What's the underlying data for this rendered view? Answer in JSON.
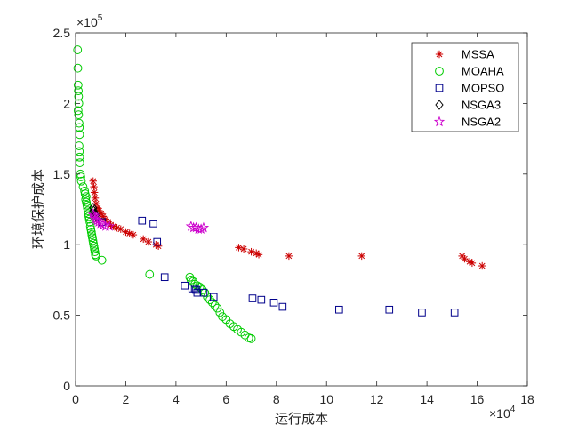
{
  "chart_data": {
    "type": "scatter",
    "xlabel": "运行成本",
    "ylabel": "环境保护成本",
    "x_exponent_label": "×10^4",
    "y_exponent_label": "×10^5",
    "x_scale": 10000,
    "y_scale": 100000,
    "xlim": [
      0,
      180000
    ],
    "ylim": [
      0,
      250000
    ],
    "xticks": [
      0,
      20000,
      40000,
      60000,
      80000,
      100000,
      120000,
      140000,
      160000,
      180000
    ],
    "xtick_labels": [
      "0",
      "2",
      "4",
      "6",
      "8",
      "10",
      "12",
      "14",
      "16",
      "18"
    ],
    "yticks": [
      0,
      50000,
      100000,
      150000,
      200000,
      250000
    ],
    "ytick_labels": [
      "0",
      "0.5",
      "1",
      "1.5",
      "2",
      "2.5"
    ],
    "grid": false,
    "legend_position": "top-right",
    "series": [
      {
        "name": "MSSA",
        "marker": "asterisk",
        "color": "#cc0000",
        "points": [
          [
            7000,
            145000
          ],
          [
            7300,
            141000
          ],
          [
            7500,
            137000
          ],
          [
            7800,
            133000
          ],
          [
            8200,
            129000
          ],
          [
            8800,
            126000
          ],
          [
            9400,
            124000
          ],
          [
            10200,
            122000
          ],
          [
            11000,
            120000
          ],
          [
            12000,
            118000
          ],
          [
            13000,
            116000
          ],
          [
            14000,
            114000
          ],
          [
            15000,
            113000
          ],
          [
            16500,
            112000
          ],
          [
            18000,
            111000
          ],
          [
            20000,
            109000
          ],
          [
            21500,
            108000
          ],
          [
            23000,
            107000
          ],
          [
            27000,
            104000
          ],
          [
            29000,
            102000
          ],
          [
            32000,
            100000
          ],
          [
            33000,
            99000
          ],
          [
            65000,
            98000
          ],
          [
            67000,
            97000
          ],
          [
            70000,
            95000
          ],
          [
            72000,
            94000
          ],
          [
            73000,
            93000
          ],
          [
            85000,
            92000
          ],
          [
            114000,
            92000
          ],
          [
            154000,
            92000
          ],
          [
            155000,
            90000
          ],
          [
            157000,
            88000
          ],
          [
            158000,
            87000
          ],
          [
            162000,
            85000
          ]
        ]
      },
      {
        "name": "MOAHA",
        "marker": "circle",
        "color": "#00cc00",
        "points": [
          [
            800,
            238000
          ],
          [
            900,
            225000
          ],
          [
            1000,
            213000
          ],
          [
            1100,
            209000
          ],
          [
            1200,
            205000
          ],
          [
            1300,
            200000
          ],
          [
            1000,
            195000
          ],
          [
            1200,
            192000
          ],
          [
            1400,
            186000
          ],
          [
            1500,
            183000
          ],
          [
            1600,
            178000
          ],
          [
            1400,
            170000
          ],
          [
            1500,
            166000
          ],
          [
            1600,
            162000
          ],
          [
            1700,
            158000
          ],
          [
            1900,
            150000
          ],
          [
            2100,
            148000
          ],
          [
            2300,
            145000
          ],
          [
            3000,
            141000
          ],
          [
            3600,
            138000
          ],
          [
            3800,
            136000
          ],
          [
            4200,
            134000
          ],
          [
            4000,
            132000
          ],
          [
            4300,
            130000
          ],
          [
            4500,
            128000
          ],
          [
            4700,
            126000
          ],
          [
            4900,
            124000
          ],
          [
            5100,
            122000
          ],
          [
            5300,
            120000
          ],
          [
            5500,
            118000
          ],
          [
            5700,
            116000
          ],
          [
            5900,
            113000
          ],
          [
            6100,
            111000
          ],
          [
            6300,
            109000
          ],
          [
            6500,
            107000
          ],
          [
            6700,
            105000
          ],
          [
            6900,
            103000
          ],
          [
            7100,
            101000
          ],
          [
            7300,
            99000
          ],
          [
            7500,
            97000
          ],
          [
            7700,
            95000
          ],
          [
            7900,
            93000
          ],
          [
            8200,
            92000
          ],
          [
            10500,
            89000
          ],
          [
            29500,
            79000
          ],
          [
            45500,
            77000
          ],
          [
            46000,
            75000
          ],
          [
            46800,
            74000
          ],
          [
            47500,
            72000
          ],
          [
            48500,
            71000
          ],
          [
            49500,
            70000
          ],
          [
            50500,
            68000
          ],
          [
            51500,
            66000
          ],
          [
            52500,
            63000
          ],
          [
            53500,
            61000
          ],
          [
            54500,
            59000
          ],
          [
            55500,
            57000
          ],
          [
            56500,
            55000
          ],
          [
            57500,
            52000
          ],
          [
            58500,
            49000
          ],
          [
            60000,
            47000
          ],
          [
            61500,
            44000
          ],
          [
            63000,
            42000
          ],
          [
            64500,
            40000
          ],
          [
            66000,
            38000
          ],
          [
            67500,
            36000
          ],
          [
            69000,
            34000
          ],
          [
            70000,
            33500
          ]
        ]
      },
      {
        "name": "MOPSO",
        "marker": "square",
        "color": "#00008b",
        "points": [
          [
            10500,
            116000
          ],
          [
            26500,
            117000
          ],
          [
            31000,
            115000
          ],
          [
            32500,
            102000
          ],
          [
            35500,
            77000
          ],
          [
            43500,
            71000
          ],
          [
            46500,
            69000
          ],
          [
            47500,
            69000
          ],
          [
            48000,
            68000
          ],
          [
            48500,
            66000
          ],
          [
            51000,
            66000
          ],
          [
            55000,
            63000
          ],
          [
            70500,
            62000
          ],
          [
            74000,
            61000
          ],
          [
            79000,
            59000
          ],
          [
            82500,
            56000
          ],
          [
            105000,
            54000
          ],
          [
            125000,
            54000
          ],
          [
            138000,
            52000
          ],
          [
            151000,
            52000
          ]
        ]
      },
      {
        "name": "NSGA3",
        "marker": "diamond",
        "color": "#000000",
        "points": [
          [
            7000,
            126000
          ],
          [
            7200,
            124000
          ],
          [
            7600,
            122000
          ],
          [
            8000,
            121000
          ],
          [
            8400,
            120000
          ]
        ]
      },
      {
        "name": "NSGA2",
        "marker": "pentagram",
        "color": "#cc00cc",
        "points": [
          [
            6800,
            122000
          ],
          [
            7200,
            121000
          ],
          [
            7600,
            120000
          ],
          [
            8000,
            118000
          ],
          [
            8600,
            117000
          ],
          [
            9200,
            116000
          ],
          [
            10000,
            115000
          ],
          [
            11000,
            114000
          ],
          [
            12000,
            113000
          ],
          [
            13500,
            113000
          ],
          [
            46000,
            113000
          ],
          [
            47000,
            112000
          ],
          [
            48000,
            112000
          ],
          [
            49000,
            111000
          ],
          [
            50000,
            111000
          ],
          [
            51000,
            112000
          ]
        ]
      }
    ]
  }
}
